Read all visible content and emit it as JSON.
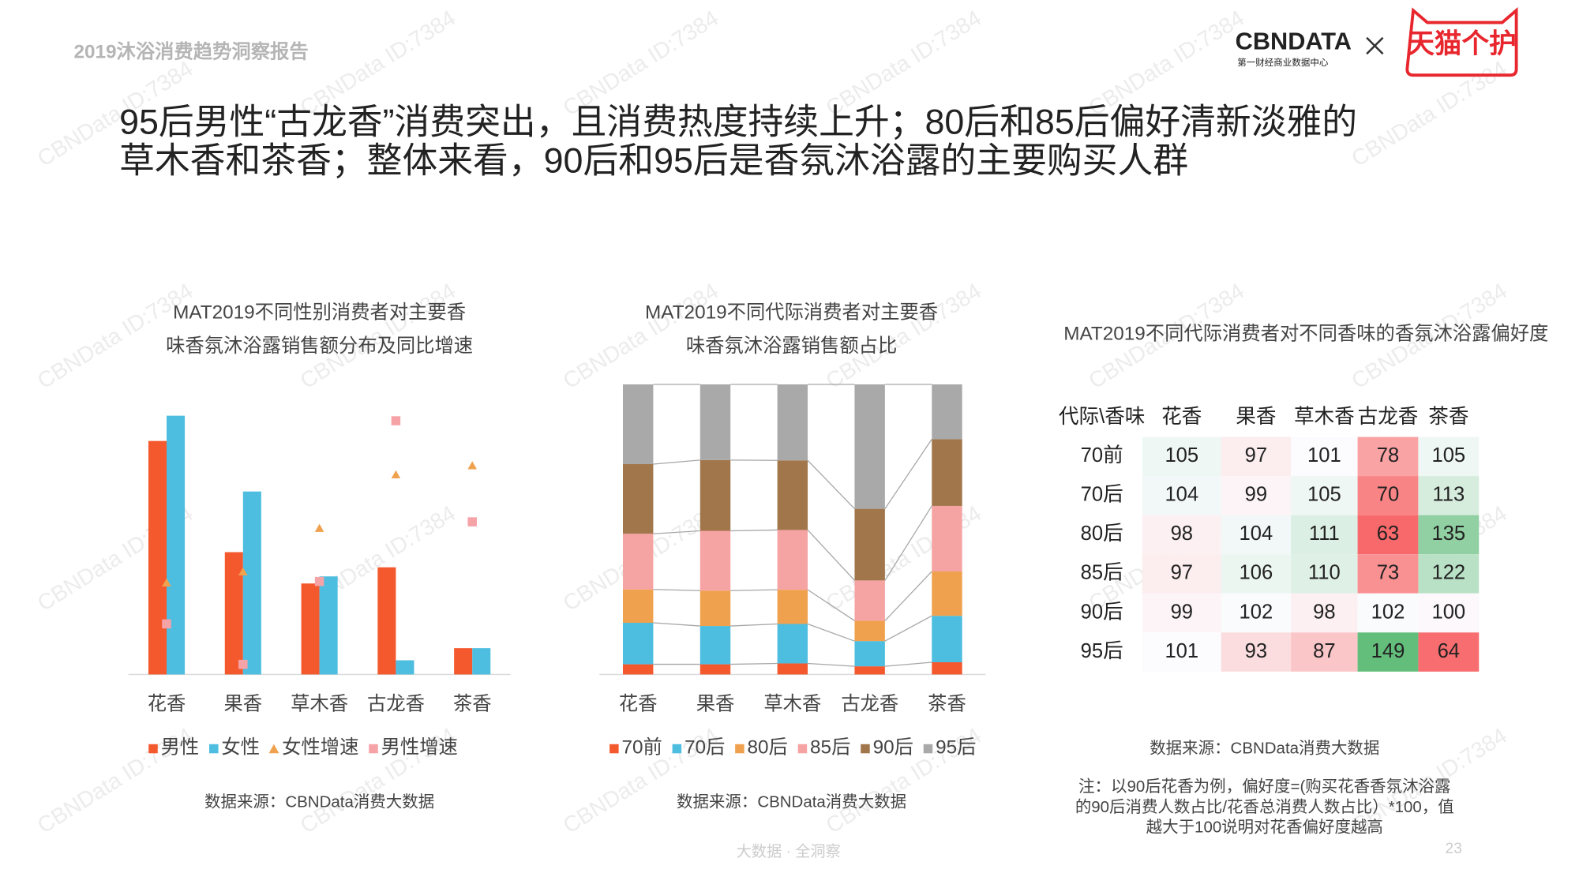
{
  "header": {
    "report": "2019沐浴消费趋势洞察报告",
    "brand": "CBNDATA",
    "brand_sub": "第一财经商业数据中心",
    "partner": "天猫个护"
  },
  "headline": [
    "95后男性“古龙香”消费突出，且消费热度持续上升；80后和85后偏好清新淡雅的",
    "草木香和茶香；整体来看，90后和95后是香氛沐浴露的主要购买人群"
  ],
  "watermark": "CBNData ID:7384",
  "chart_data": [
    {
      "type": "bar",
      "title": [
        "MAT2019不同性别消费者对主要香",
        "味香氛沐浴露销售额分布及同比增速"
      ],
      "categories": [
        "花香",
        "果香",
        "草木香",
        "古龙香",
        "茶香"
      ],
      "series": [
        {
          "name": "男性",
          "color": "#f4592e",
          "marker": "bar",
          "values": [
            231,
            121,
            90,
            106,
            26
          ]
        },
        {
          "name": "女性",
          "color": "#4dbde0",
          "marker": "bar",
          "values": [
            256,
            181,
            97,
            14,
            26
          ]
        },
        {
          "name": "女性增速",
          "color": "#f0a14e",
          "marker": "triangle",
          "axis": "y2",
          "values": [
            91,
            102,
            145,
            198,
            207
          ]
        },
        {
          "name": "男性增速",
          "color": "#f6a3a8",
          "marker": "square",
          "axis": "y2",
          "values": [
            50,
            10,
            92,
            251,
            151
          ]
        }
      ],
      "ylim": [
        0,
        300
      ],
      "y2lim": [
        0,
        300
      ],
      "source": "数据来源：CBNData消费大数据"
    },
    {
      "type": "stacked_bar",
      "title": [
        "MAT2019不同代际消费者对主要香",
        "味香氛沐浴露销售额占比"
      ],
      "categories": [
        "花香",
        "果香",
        "草木香",
        "古龙香",
        "茶香"
      ],
      "series": [
        {
          "name": "70前",
          "color": "#f4592e",
          "values": [
            3.5,
            3.5,
            3.8,
            2.8,
            4.2
          ]
        },
        {
          "name": "70后",
          "color": "#4dbde0",
          "values": [
            14.3,
            13.2,
            13.6,
            8.7,
            16.0
          ]
        },
        {
          "name": "80后",
          "color": "#f0a14e",
          "values": [
            11.5,
            12.2,
            11.8,
            7.0,
            15.3
          ]
        },
        {
          "name": "85后",
          "color": "#f6a3a3",
          "values": [
            19.2,
            20.6,
            20.6,
            13.9,
            22.6
          ]
        },
        {
          "name": "90后",
          "color": "#a0764a",
          "values": [
            24.0,
            24.4,
            24.0,
            24.7,
            23.0
          ]
        },
        {
          "name": "95后",
          "color": "#a9a9a9",
          "values": [
            27.5,
            26.1,
            26.2,
            42.9,
            18.9
          ]
        }
      ],
      "ylim": [
        0,
        100
      ],
      "source": "数据来源：CBNData消费大数据"
    },
    {
      "type": "heatmap",
      "title": "MAT2019不同代际消费者对不同香味的香氛沐浴露偏好度",
      "corner": "代际\\香味",
      "columns": [
        "花香",
        "果香",
        "草木香",
        "古龙香",
        "茶香"
      ],
      "rows": [
        "70前",
        "70后",
        "80后",
        "85后",
        "90后",
        "95后"
      ],
      "values": [
        [
          105,
          97,
          101,
          78,
          105
        ],
        [
          104,
          99,
          105,
          70,
          113
        ],
        [
          98,
          104,
          111,
          63,
          135
        ],
        [
          97,
          106,
          110,
          73,
          122
        ],
        [
          99,
          102,
          98,
          102,
          100
        ],
        [
          101,
          93,
          87,
          149,
          64
        ]
      ],
      "color_low": "#f8696b",
      "color_mid": "#fcfcff",
      "color_high": "#63be7b",
      "source": "数据来源：CBNData消费大数据",
      "note": [
        "注：以90后花香为例，偏好度=(购买花香香氛沐浴露",
        "的90后消费人数占比/花香总消费人数占比）*100，值",
        "越大于100说明对花香偏好度越高"
      ]
    }
  ],
  "footer": {
    "tagline": "大数据 · 全洞察",
    "page": "23"
  }
}
